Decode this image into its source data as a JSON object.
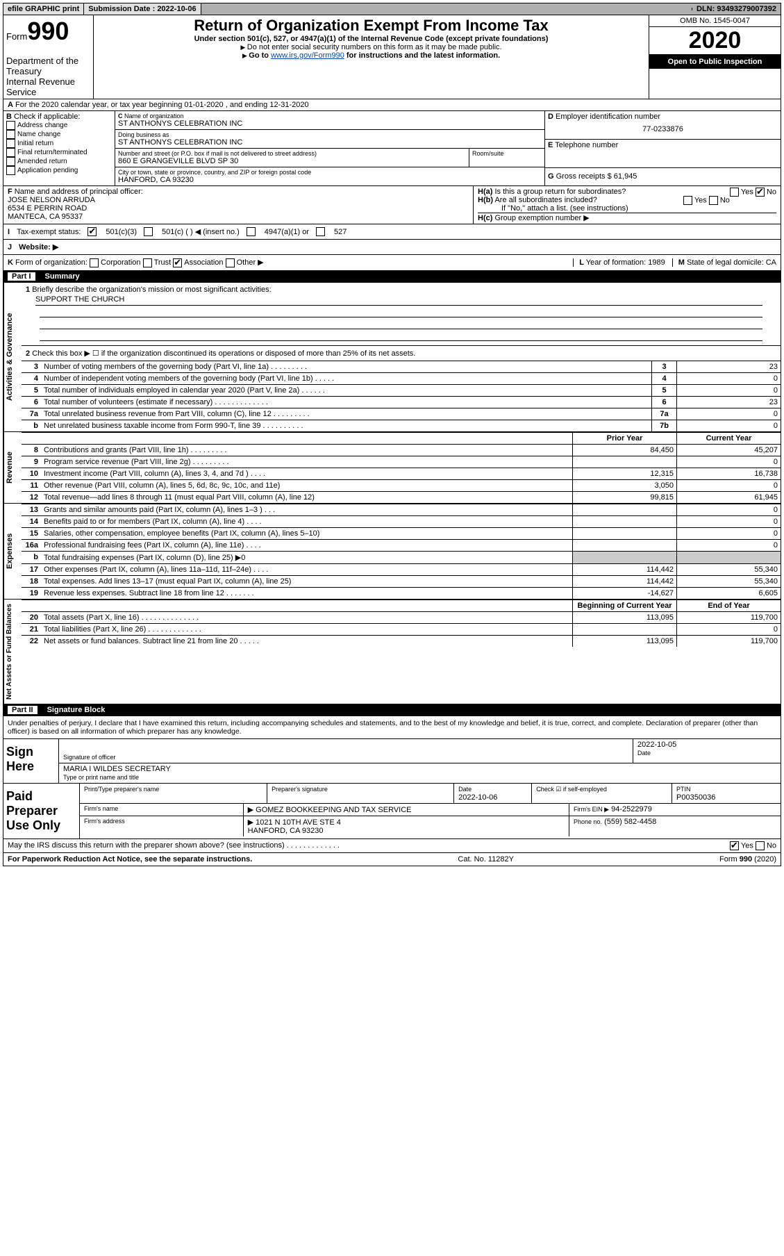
{
  "topbar": {
    "efile": "efile GRAPHIC print",
    "submission": "Submission Date : 2022-10-06",
    "dln": "DLN: 93493279007392"
  },
  "header": {
    "form_label": "Form",
    "form_number": "990",
    "dept": "Department of the Treasury",
    "irs": "Internal Revenue Service",
    "title": "Return of Organization Exempt From Income Tax",
    "subtitle": "Under section 501(c), 527, or 4947(a)(1) of the Internal Revenue Code (except private foundations)",
    "note1": "Do not enter social security numbers on this form as it may be made public.",
    "note2_prefix": "Go to ",
    "note2_link": "www.irs.gov/Form990",
    "note2_suffix": " for instructions and the latest information.",
    "omb": "OMB No. 1545-0047",
    "year": "2020",
    "open": "Open to Public Inspection"
  },
  "A": {
    "text": "For the 2020 calendar year, or tax year beginning 01-01-2020    , and ending 12-31-2020"
  },
  "B": {
    "label": "Check if applicable:",
    "opts": [
      "Address change",
      "Name change",
      "Initial return",
      "Final return/terminated",
      "Amended return",
      "Application pending"
    ]
  },
  "C": {
    "name_label": "Name of organization",
    "name": "ST ANTHONYS CELEBRATION INC",
    "dba_label": "Doing business as",
    "dba": "ST ANTHONYS CELEBRATION INC",
    "street_label": "Number and street (or P.O. box if mail is not delivered to street address)",
    "room_label": "Room/suite",
    "street": "860 E GRANGEVILLE BLVD SP 30",
    "city_label": "City or town, state or province, country, and ZIP or foreign postal code",
    "city": "HANFORD, CA  93230"
  },
  "D": {
    "label": "Employer identification number",
    "value": "77-0233876"
  },
  "E": {
    "label": "Telephone number",
    "value": ""
  },
  "G": {
    "label": "Gross receipts $",
    "value": "61,945"
  },
  "F": {
    "label": "Name and address of principal officer:",
    "name": "JOSE NELSON ARRUDA",
    "street": "6534 E PERRIN ROAD",
    "city": "MANTECA, CA  95337"
  },
  "H": {
    "a": "Is this a group return for subordinates?",
    "b": "Are all subordinates included?",
    "b_note": "If \"No,\" attach a list. (see instructions)",
    "c": "Group exemption number ▶",
    "yes": "Yes",
    "no": "No"
  },
  "I": {
    "label": "Tax-exempt status:",
    "opt1": "501(c)(3)",
    "opt2": "501(c) (  ) ◀ (insert no.)",
    "opt3": "4947(a)(1) or",
    "opt4": "527"
  },
  "J": {
    "label": "Website: ▶"
  },
  "K": {
    "label": "Form of organization:",
    "c": "Corporation",
    "t": "Trust",
    "a": "Association",
    "o": "Other ▶"
  },
  "L": {
    "label": "Year of formation:",
    "value": "1989"
  },
  "M": {
    "label": "State of legal domicile:",
    "value": "CA"
  },
  "part1": {
    "num": "Part I",
    "title": "Summary"
  },
  "summary": {
    "q1": "Briefly describe the organization's mission or most significant activities:",
    "mission": "SUPPORT THE CHURCH",
    "q2": "Check this box ▶ ☐  if the organization discontinued its operations or disposed of more than 25% of its net assets.",
    "rows_a": [
      {
        "n": "3",
        "t": "Number of voting members of the governing body (Part VI, line 1a)  .    .    .    .    .    .    .    .    .",
        "b": "3",
        "v": "23"
      },
      {
        "n": "4",
        "t": "Number of independent voting members of the governing body (Part VI, line 1b)  .    .    .    .    .",
        "b": "4",
        "v": "0"
      },
      {
        "n": "5",
        "t": "Total number of individuals employed in calendar year 2020 (Part V, line 2a)  .    .    .    .    .    .",
        "b": "5",
        "v": "0"
      },
      {
        "n": "6",
        "t": "Total number of volunteers (estimate if necessary)  .    .    .    .    .    .    .    .    .    .    .    .    .",
        "b": "6",
        "v": "23"
      },
      {
        "n": "7a",
        "t": "Total unrelated business revenue from Part VIII, column (C), line 12  .    .    .    .    .    .    .    .    .",
        "b": "7a",
        "v": "0"
      },
      {
        "n": "b",
        "t": "Net unrelated business taxable income from Form 990-T, line 39  .    .    .    .    .    .    .    .    .    .",
        "b": "7b",
        "v": "0"
      }
    ],
    "hdr_prior": "Prior Year",
    "hdr_curr": "Current Year",
    "rows_rev": [
      {
        "n": "8",
        "t": "Contributions and grants (Part VIII, line 1h)  .    .    .    .    .    .    .    .    .",
        "p": "84,450",
        "c": "45,207"
      },
      {
        "n": "9",
        "t": "Program service revenue (Part VIII, line 2g)  .    .    .    .    .    .    .    .    .",
        "p": "",
        "c": "0"
      },
      {
        "n": "10",
        "t": "Investment income (Part VIII, column (A), lines 3, 4, and 7d )  .    .    .    .",
        "p": "12,315",
        "c": "16,738"
      },
      {
        "n": "11",
        "t": "Other revenue (Part VIII, column (A), lines 5, 6d, 8c, 9c, 10c, and 11e)",
        "p": "3,050",
        "c": "0"
      },
      {
        "n": "12",
        "t": "Total revenue—add lines 8 through 11 (must equal Part VIII, column (A), line 12)",
        "p": "99,815",
        "c": "61,945"
      }
    ],
    "rows_exp": [
      {
        "n": "13",
        "t": "Grants and similar amounts paid (Part IX, column (A), lines 1–3 )  .    .    .",
        "p": "",
        "c": "0"
      },
      {
        "n": "14",
        "t": "Benefits paid to or for members (Part IX, column (A), line 4)  .    .    .    .",
        "p": "",
        "c": "0"
      },
      {
        "n": "15",
        "t": "Salaries, other compensation, employee benefits (Part IX, column (A), lines 5–10)",
        "p": "",
        "c": "0"
      },
      {
        "n": "16a",
        "t": "Professional fundraising fees (Part IX, column (A), line 11e)  .    .    .    .",
        "p": "",
        "c": "0"
      },
      {
        "n": "b",
        "t": "Total fundraising expenses (Part IX, column (D), line 25) ▶0",
        "p": "",
        "c": "",
        "shade": true
      },
      {
        "n": "17",
        "t": "Other expenses (Part IX, column (A), lines 11a–11d, 11f–24e)  .    .    .    .",
        "p": "114,442",
        "c": "55,340"
      },
      {
        "n": "18",
        "t": "Total expenses. Add lines 13–17 (must equal Part IX, column (A), line 25)",
        "p": "114,442",
        "c": "55,340"
      },
      {
        "n": "19",
        "t": "Revenue less expenses. Subtract line 18 from line 12  .    .    .    .    .    .    .",
        "p": "-14,627",
        "c": "6,605"
      }
    ],
    "hdr_beg": "Beginning of Current Year",
    "hdr_end": "End of Year",
    "rows_net": [
      {
        "n": "20",
        "t": "Total assets (Part X, line 16)  .    .    .    .    .    .    .    .    .    .    .    .    .    .",
        "p": "113,095",
        "c": "119,700"
      },
      {
        "n": "21",
        "t": "Total liabilities (Part X, line 26)  .    .    .    .    .    .    .    .    .    .    .    .    .",
        "p": "",
        "c": "0"
      },
      {
        "n": "22",
        "t": "Net assets or fund balances. Subtract line 21 from line 20  .    .    .    .    .",
        "p": "113,095",
        "c": "119,700"
      }
    ],
    "sidelabels": {
      "gov": "Activities & Governance",
      "rev": "Revenue",
      "exp": "Expenses",
      "net": "Net Assets or Fund Balances"
    }
  },
  "part2": {
    "num": "Part II",
    "title": "Signature Block"
  },
  "decl": "Under penalties of perjury, I declare that I have examined this return, including accompanying schedules and statements, and to the best of my knowledge and belief, it is true, correct, and complete. Declaration of preparer (other than officer) is based on all information of which preparer has any knowledge.",
  "sign": {
    "label": "Sign Here",
    "sig_label": "Signature of officer",
    "date_label": "Date",
    "date": "2022-10-05",
    "name_label": "Type or print name and title",
    "name": "MARIA I WILDES SECRETARY"
  },
  "prep": {
    "label": "Paid Preparer Use Only",
    "r1": {
      "a": "Print/Type preparer's name",
      "b": "Preparer's signature",
      "c": "Date",
      "cv": "2022-10-06",
      "d": "Check ☑ if self-employed",
      "e": "PTIN",
      "ev": "P00350036"
    },
    "r2": {
      "a": "Firm's name",
      "av": "▶ GOMEZ BOOKKEEPING AND TAX SERVICE",
      "b": "Firm's EIN ▶",
      "bv": "94-2522979"
    },
    "r3": {
      "a": "Firm's address",
      "av": "▶ 1021 N 10TH AVE STE 4",
      "b": "Phone no.",
      "bv": "(559) 582-4458"
    },
    "r3b": "HANFORD, CA  93230"
  },
  "discuss": {
    "q": "May the IRS discuss this return with the preparer shown above? (see instructions)   .    .    .    .    .    .    .    .    .    .    .    .    .",
    "yes": "Yes",
    "no": "No"
  },
  "footer": {
    "left": "For Paperwork Reduction Act Notice, see the separate instructions.",
    "mid": "Cat. No. 11282Y",
    "right": "Form 990 (2020)"
  }
}
